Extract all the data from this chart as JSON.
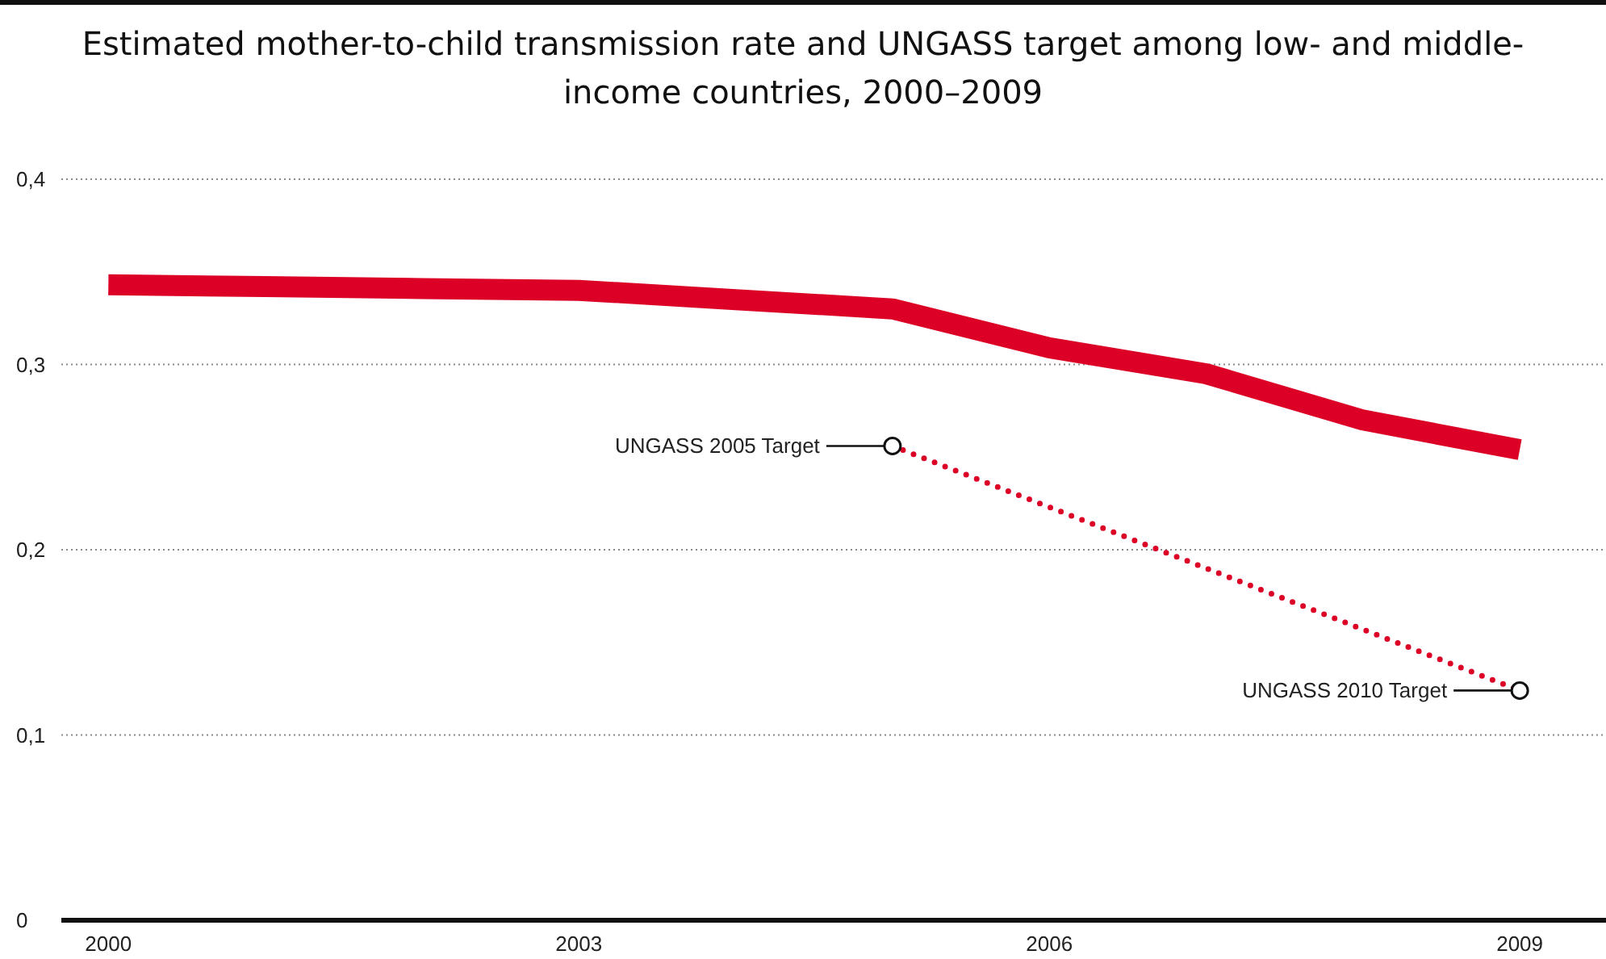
{
  "chart_data": {
    "type": "line",
    "title": "Estimated mother-to-child transmission rate and UNGASS target among low- and middle-income countries, 2000–2009",
    "x": [
      2000,
      2001,
      2002,
      2003,
      2004,
      2005,
      2006,
      2007,
      2008,
      2009
    ],
    "series": [
      {
        "color": "#dc0027",
        "values": [
          0.343,
          0.342,
          0.341,
          0.34,
          0.335,
          0.33,
          0.309,
          0.295,
          0.27,
          0.254
        ],
        "line_style": "solid",
        "marker": "none"
      },
      {
        "type": "line",
        "x": [
          2005,
          2009
        ],
        "values": [
          0.256,
          0.124
        ],
        "color": "#dc0027",
        "line_style": "dotted",
        "marker": "circle"
      }
    ],
    "xlim": [
      1999.7,
      2009.55
    ],
    "xticks": [
      2000,
      2003,
      2006,
      2009
    ],
    "ylim": [
      0,
      0.4
    ],
    "yticks": [
      0,
      {
        "value": 0.1,
        "label": "0,1"
      },
      {
        "value": 0.2,
        "label": "0,2"
      },
      {
        "value": 0.3,
        "label": "0,3"
      },
      {
        "value": 0.4,
        "label": "0,4"
      }
    ],
    "grid": "y",
    "annotations": [
      {
        "text": "UNGASS 2005 Target",
        "x": 2005,
        "y": 0.256
      },
      {
        "text": "UNGASS 2010 Target",
        "x": 2009,
        "y": 0.124
      }
    ]
  }
}
